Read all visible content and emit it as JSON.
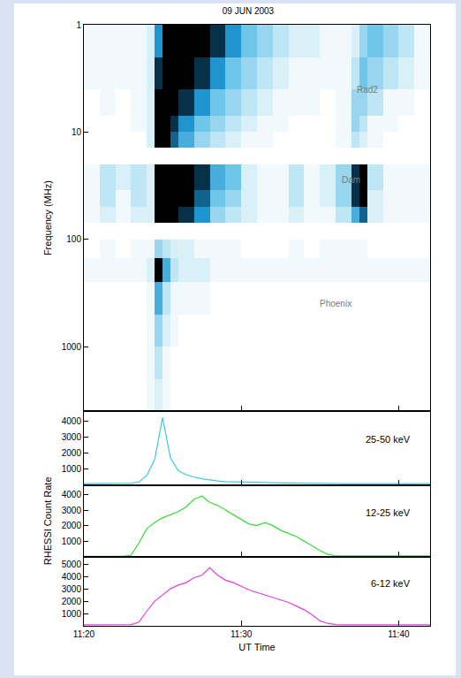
{
  "chart_data": [
    {
      "type": "heatmap",
      "title": "09 JUN 2003",
      "ylabel": "Frequency (MHz)",
      "log": "y",
      "tick_labels": "y",
      "xlim": [
        "2003-06-09 11:20:00",
        "2003-06-09 11:42:00"
      ],
      "xticks": [
        {
          "value": "2003-06-09 11:20:00",
          "label": "11:20"
        },
        {
          "value": "2003-06-09 11:30:00",
          "label": "11:30"
        },
        {
          "value": "2003-06-09 11:40:00",
          "label": "11:40"
        }
      ],
      "ylim": [
        4000,
        1
      ],
      "yticks": [
        1,
        10,
        100,
        1000
      ],
      "x": [
        "2003-06-09 11:20:00",
        "2003-06-09 11:21:00",
        "2003-06-09 11:22:00",
        "2003-06-09 11:23:00",
        "2003-06-09 11:24:00",
        "2003-06-09 11:24:30",
        "2003-06-09 11:25:00",
        "2003-06-09 11:25:30",
        "2003-06-09 11:26:00",
        "2003-06-09 11:27:00",
        "2003-06-09 11:28:00",
        "2003-06-09 11:29:00",
        "2003-06-09 11:30:00",
        "2003-06-09 11:31:00",
        "2003-06-09 11:32:00",
        "2003-06-09 11:33:00",
        "2003-06-09 11:34:00",
        "2003-06-09 11:35:00",
        "2003-06-09 11:36:00",
        "2003-06-09 11:37:00",
        "2003-06-09 11:37:30",
        "2003-06-09 11:38:00",
        "2003-06-09 11:39:00",
        "2003-06-09 11:40:00",
        "2003-06-09 11:41:00",
        "2003-06-09 11:42:00"
      ],
      "y": [
        1,
        2,
        4,
        7,
        10,
        14,
        20,
        35,
        50,
        70,
        100,
        150,
        250,
        500,
        1000,
        2000,
        4000
      ],
      "zlim": [
        0,
        10
      ],
      "z": [
        [
          1,
          1,
          1,
          1,
          2,
          7,
          10,
          10,
          10,
          10,
          9,
          7,
          5,
          4,
          3,
          2,
          2,
          1,
          1,
          2,
          4,
          5,
          4,
          3,
          1
        ],
        [
          1,
          1,
          1,
          1,
          2,
          9,
          10,
          10,
          10,
          9,
          7,
          5,
          4,
          3,
          2,
          1,
          1,
          1,
          1,
          3,
          5,
          4,
          3,
          2,
          1
        ],
        [
          0,
          1,
          0,
          1,
          2,
          10,
          10,
          10,
          9,
          7,
          5,
          4,
          3,
          2,
          1,
          1,
          1,
          0,
          1,
          4,
          4,
          3,
          1,
          1,
          0
        ],
        [
          0,
          0,
          0,
          1,
          2,
          10,
          10,
          9,
          7,
          5,
          4,
          3,
          2,
          1,
          1,
          0,
          0,
          0,
          1,
          4,
          3,
          1,
          1,
          0,
          0
        ],
        [
          0,
          0,
          0,
          0,
          2,
          10,
          10,
          8,
          6,
          4,
          3,
          2,
          1,
          1,
          0,
          0,
          0,
          0,
          1,
          3,
          2,
          1,
          0,
          0,
          0
        ],
        [
          null,
          null,
          null,
          null,
          null,
          null,
          null,
          null,
          null,
          null,
          null,
          null,
          null,
          null,
          null,
          null,
          null,
          null,
          null,
          null,
          null,
          null,
          null,
          null,
          null
        ],
        [
          1,
          3,
          2,
          3,
          2,
          10,
          10,
          10,
          10,
          9,
          6,
          5,
          2,
          1,
          1,
          3,
          1,
          2,
          4,
          9,
          10,
          3,
          1,
          1,
          1
        ],
        [
          1,
          3,
          1,
          3,
          2,
          10,
          10,
          10,
          10,
          8,
          5,
          4,
          2,
          1,
          1,
          3,
          1,
          2,
          4,
          9,
          10,
          2,
          1,
          1,
          1
        ],
        [
          1,
          2,
          1,
          2,
          2,
          10,
          10,
          10,
          9,
          7,
          4,
          3,
          2,
          1,
          1,
          2,
          1,
          1,
          3,
          6,
          8,
          2,
          1,
          1,
          1
        ],
        [
          null,
          null,
          null,
          null,
          null,
          null,
          null,
          null,
          null,
          null,
          null,
          null,
          null,
          null,
          null,
          null,
          null,
          null,
          null,
          null,
          null,
          null,
          null,
          null,
          null
        ],
        [
          0,
          1,
          0,
          1,
          1,
          4,
          3,
          2,
          2,
          1,
          1,
          1,
          0,
          0,
          0,
          1,
          0,
          1,
          1,
          1,
          1,
          0,
          0,
          0,
          0
        ],
        [
          1,
          1,
          1,
          1,
          2,
          10,
          6,
          3,
          2,
          2,
          1,
          1,
          1,
          1,
          1,
          1,
          1,
          1,
          1,
          1,
          1,
          1,
          1,
          1,
          1
        ],
        [
          0,
          0,
          0,
          0,
          1,
          6,
          3,
          1,
          1,
          1,
          0,
          0,
          0,
          0,
          0,
          0,
          0,
          0,
          0,
          0,
          0,
          0,
          0,
          0,
          0
        ],
        [
          0,
          0,
          0,
          0,
          1,
          4,
          2,
          1,
          0,
          0,
          0,
          0,
          0,
          0,
          0,
          0,
          0,
          0,
          0,
          0,
          0,
          0,
          0,
          0,
          0
        ],
        [
          0,
          0,
          0,
          0,
          1,
          3,
          1,
          0,
          0,
          0,
          0,
          0,
          0,
          0,
          0,
          0,
          0,
          0,
          0,
          0,
          0,
          0,
          0,
          0,
          0
        ],
        [
          0,
          0,
          0,
          0,
          1,
          2,
          1,
          0,
          0,
          0,
          0,
          0,
          0,
          0,
          0,
          0,
          0,
          0,
          0,
          0,
          0,
          0,
          0,
          0,
          0
        ]
      ],
      "annotations": [
        {
          "text": "Rad2",
          "x": "2003-06-09 11:38:00",
          "y": 4
        },
        {
          "text": "Dam",
          "x": "2003-06-09 11:37:00",
          "y": 28
        },
        {
          "text": "Phoenix",
          "x": "2003-06-09 11:36:00",
          "y": 400
        }
      ]
    },
    {
      "type": "line",
      "tick_labels": "y",
      "xlim": [
        "2003-06-09 11:20:00",
        "2003-06-09 11:42:00"
      ],
      "xticks": [
        {
          "value": "2003-06-09 11:20:00",
          "label": "11:20"
        },
        {
          "value": "2003-06-09 11:30:00",
          "label": "11:30"
        },
        {
          "value": "2003-06-09 11:40:00",
          "label": "11:40"
        }
      ],
      "ylim": [
        0,
        4600
      ],
      "yticks": [
        1000,
        2000,
        3000,
        4000
      ],
      "x": [
        "2003-06-09 11:20:00",
        "2003-06-09 11:20:30",
        "2003-06-09 11:21:00",
        "2003-06-09 11:21:30",
        "2003-06-09 11:22:00",
        "2003-06-09 11:22:30",
        "2003-06-09 11:23:00",
        "2003-06-09 11:23:30",
        "2003-06-09 11:24:00",
        "2003-06-09 11:24:30",
        "2003-06-09 11:25:00",
        "2003-06-09 11:25:30",
        "2003-06-09 11:26:00",
        "2003-06-09 11:26:30",
        "2003-06-09 11:27:00",
        "2003-06-09 11:27:30",
        "2003-06-09 11:28:00",
        "2003-06-09 11:28:30",
        "2003-06-09 11:29:00",
        "2003-06-09 11:29:30",
        "2003-06-09 11:30:00",
        "2003-06-09 11:30:30",
        "2003-06-09 11:31:00",
        "2003-06-09 11:31:30",
        "2003-06-09 11:32:00",
        "2003-06-09 11:32:30",
        "2003-06-09 11:33:00",
        "2003-06-09 11:33:30",
        "2003-06-09 11:34:00",
        "2003-06-09 11:34:30",
        "2003-06-09 11:35:00",
        "2003-06-09 11:35:30",
        "2003-06-09 11:36:00",
        "2003-06-09 11:36:30",
        "2003-06-09 11:37:00",
        "2003-06-09 11:37:30",
        "2003-06-09 11:38:00",
        "2003-06-09 11:38:30",
        "2003-06-09 11:39:00",
        "2003-06-09 11:39:30",
        "2003-06-09 11:40:00",
        "2003-06-09 11:40:30",
        "2003-06-09 11:41:00",
        "2003-06-09 11:41:30",
        "2003-06-09 11:42:00"
      ],
      "series": [
        {
          "name": "25-50 keV",
          "color": "#3cc8e4",
          "values": [
            100,
            100,
            100,
            100,
            100,
            110,
            120,
            200,
            600,
            1600,
            4200,
            1700,
            900,
            650,
            500,
            400,
            320,
            260,
            220,
            200,
            180,
            170,
            160,
            160,
            150,
            140,
            130,
            120,
            110,
            110,
            110,
            100,
            100,
            100,
            100,
            100,
            100,
            100,
            100,
            100,
            100,
            100,
            100,
            100,
            100
          ]
        }
      ]
    },
    {
      "type": "line",
      "ylabel": "RHESSI Count Rate",
      "tick_labels": "y",
      "xlim": [
        "2003-06-09 11:20:00",
        "2003-06-09 11:42:00"
      ],
      "xticks": [
        {
          "value": "2003-06-09 11:20:00",
          "label": "11:20"
        },
        {
          "value": "2003-06-09 11:30:00",
          "label": "11:30"
        },
        {
          "value": "2003-06-09 11:40:00",
          "label": "11:40"
        }
      ],
      "ylim": [
        0,
        4600
      ],
      "yticks": [
        1000,
        2000,
        3000,
        4000
      ],
      "x": [
        "2003-06-09 11:20:00",
        "2003-06-09 11:20:30",
        "2003-06-09 11:21:00",
        "2003-06-09 11:21:30",
        "2003-06-09 11:22:00",
        "2003-06-09 11:22:30",
        "2003-06-09 11:23:00",
        "2003-06-09 11:23:30",
        "2003-06-09 11:24:00",
        "2003-06-09 11:24:30",
        "2003-06-09 11:25:00",
        "2003-06-09 11:25:30",
        "2003-06-09 11:26:00",
        "2003-06-09 11:26:30",
        "2003-06-09 11:27:00",
        "2003-06-09 11:27:30",
        "2003-06-09 11:28:00",
        "2003-06-09 11:28:30",
        "2003-06-09 11:29:00",
        "2003-06-09 11:29:30",
        "2003-06-09 11:30:00",
        "2003-06-09 11:30:30",
        "2003-06-09 11:31:00",
        "2003-06-09 11:31:30",
        "2003-06-09 11:32:00",
        "2003-06-09 11:32:30",
        "2003-06-09 11:33:00",
        "2003-06-09 11:33:30",
        "2003-06-09 11:34:00",
        "2003-06-09 11:34:30",
        "2003-06-09 11:35:00",
        "2003-06-09 11:35:30",
        "2003-06-09 11:36:00",
        "2003-06-09 11:36:30",
        "2003-06-09 11:37:00",
        "2003-06-09 11:37:30",
        "2003-06-09 11:38:00",
        "2003-06-09 11:38:30",
        "2003-06-09 11:39:00",
        "2003-06-09 11:39:30",
        "2003-06-09 11:40:00",
        "2003-06-09 11:40:30",
        "2003-06-09 11:41:00",
        "2003-06-09 11:41:30",
        "2003-06-09 11:42:00"
      ],
      "series": [
        {
          "name": "12-25 keV",
          "color": "#33dd33",
          "values": [
            30,
            30,
            30,
            30,
            30,
            30,
            100,
            900,
            1800,
            2200,
            2500,
            2700,
            2900,
            3200,
            3700,
            3900,
            3500,
            3300,
            3000,
            2700,
            2400,
            2100,
            2000,
            2200,
            2000,
            1700,
            1500,
            1300,
            1000,
            700,
            400,
            150,
            60,
            50,
            50,
            50,
            50,
            50,
            50,
            50,
            50,
            50,
            50,
            50,
            50
          ]
        }
      ]
    },
    {
      "type": "line",
      "xlabel": "UT Time",
      "xlim": [
        "2003-06-09 11:20:00",
        "2003-06-09 11:42:00"
      ],
      "xticks": [
        {
          "value": "2003-06-09 11:20:00",
          "label": "11:20"
        },
        {
          "value": "2003-06-09 11:30:00",
          "label": "11:30"
        },
        {
          "value": "2003-06-09 11:40:00",
          "label": "11:40"
        }
      ],
      "ylim": [
        0,
        5600
      ],
      "yticks": [
        1000,
        2000,
        3000,
        4000,
        5000
      ],
      "x": [
        "2003-06-09 11:20:00",
        "2003-06-09 11:20:30",
        "2003-06-09 11:21:00",
        "2003-06-09 11:21:30",
        "2003-06-09 11:22:00",
        "2003-06-09 11:22:30",
        "2003-06-09 11:23:00",
        "2003-06-09 11:23:30",
        "2003-06-09 11:24:00",
        "2003-06-09 11:24:30",
        "2003-06-09 11:25:00",
        "2003-06-09 11:25:30",
        "2003-06-09 11:26:00",
        "2003-06-09 11:26:30",
        "2003-06-09 11:27:00",
        "2003-06-09 11:27:30",
        "2003-06-09 11:28:00",
        "2003-06-09 11:28:30",
        "2003-06-09 11:29:00",
        "2003-06-09 11:29:30",
        "2003-06-09 11:30:00",
        "2003-06-09 11:30:30",
        "2003-06-09 11:31:00",
        "2003-06-09 11:31:30",
        "2003-06-09 11:32:00",
        "2003-06-09 11:32:30",
        "2003-06-09 11:33:00",
        "2003-06-09 11:33:30",
        "2003-06-09 11:34:00",
        "2003-06-09 11:34:30",
        "2003-06-09 11:35:00",
        "2003-06-09 11:35:30",
        "2003-06-09 11:36:00",
        "2003-06-09 11:36:30",
        "2003-06-09 11:37:00",
        "2003-06-09 11:37:30",
        "2003-06-09 11:38:00",
        "2003-06-09 11:38:30",
        "2003-06-09 11:39:00",
        "2003-06-09 11:39:30",
        "2003-06-09 11:40:00",
        "2003-06-09 11:40:30",
        "2003-06-09 11:41:00",
        "2003-06-09 11:41:30",
        "2003-06-09 11:42:00"
      ],
      "series": [
        {
          "name": "6-12 keV",
          "color": "#e040e0",
          "values": [
            80,
            80,
            80,
            80,
            80,
            80,
            100,
            300,
            1200,
            2000,
            2500,
            3000,
            3300,
            3500,
            3900,
            4100,
            4700,
            4100,
            3700,
            3500,
            3200,
            2900,
            2700,
            2500,
            2300,
            2100,
            1900,
            1600,
            1300,
            900,
            400,
            200,
            100,
            80,
            80,
            80,
            80,
            80,
            80,
            80,
            80,
            80,
            80,
            80,
            80
          ]
        }
      ]
    }
  ]
}
